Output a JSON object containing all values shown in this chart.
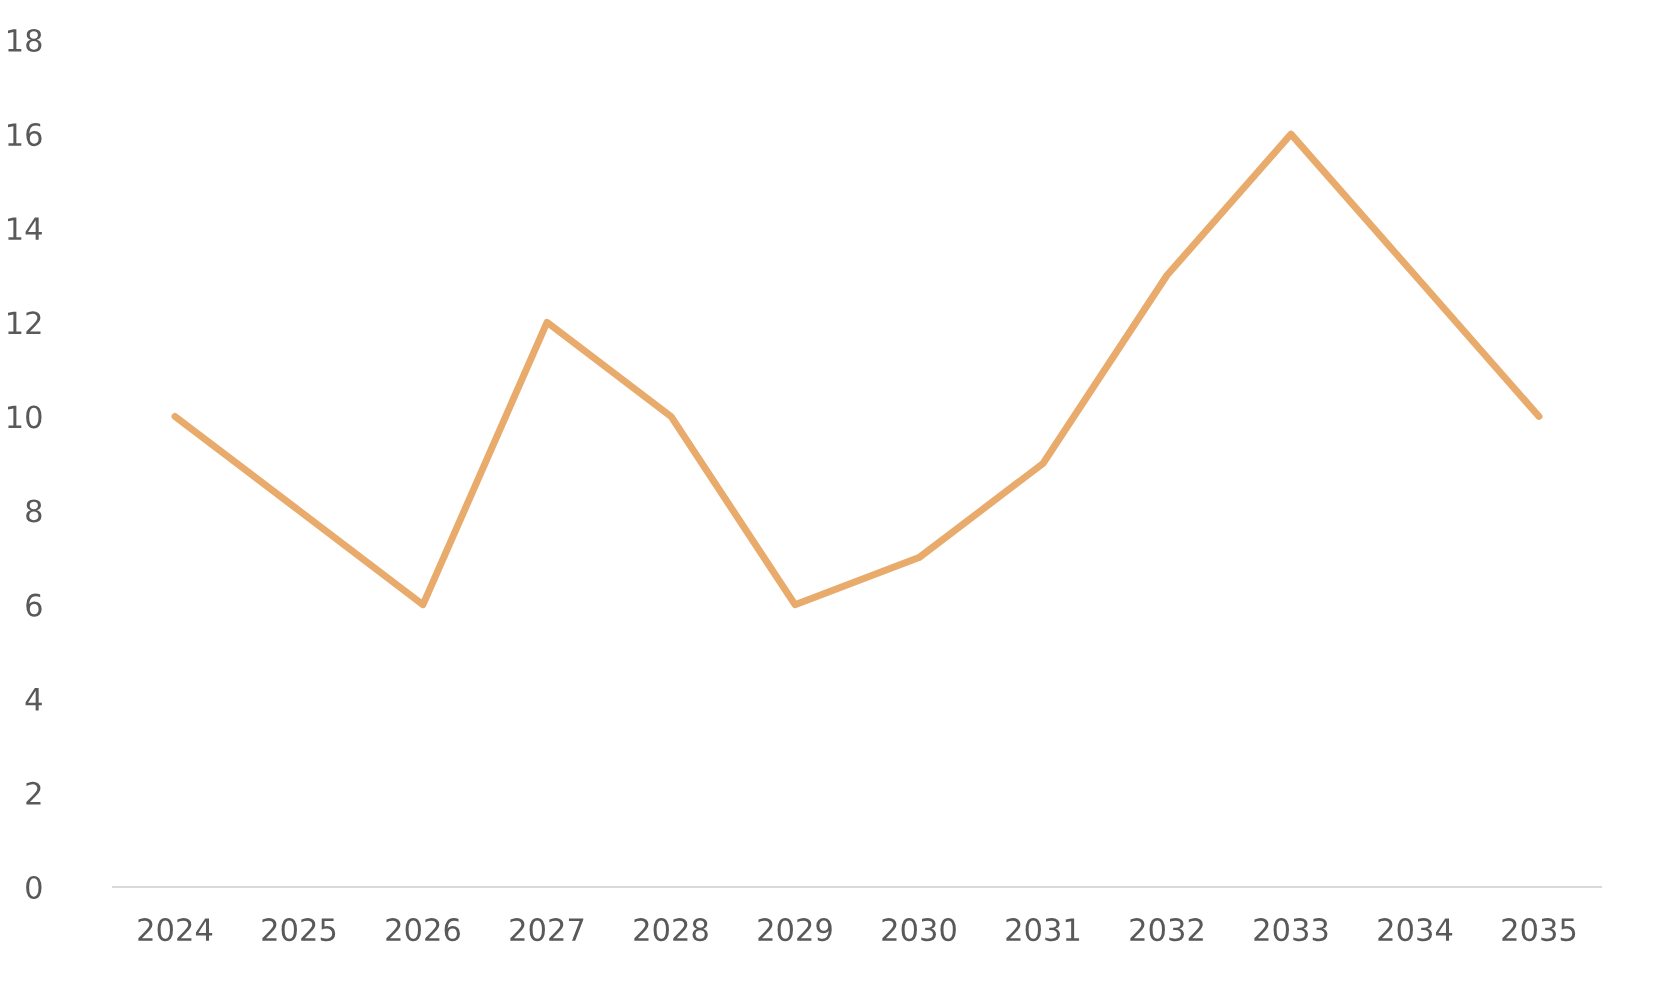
{
  "chart_data": {
    "type": "line",
    "categories": [
      "2024",
      "2025",
      "2026",
      "2027",
      "2028",
      "2029",
      "2030",
      "2031",
      "2032",
      "2033",
      "2034",
      "2035"
    ],
    "series": [
      {
        "color": "#e9ab6c",
        "values": [
          10,
          8,
          6,
          12,
          10,
          6,
          7,
          9,
          13,
          16,
          13,
          10
        ]
      }
    ],
    "ylim": [
      0,
      18
    ],
    "yticks": [
      0,
      2,
      4,
      6,
      8,
      10,
      12,
      14,
      16,
      18
    ],
    "grid": false,
    "marker": "none",
    "line_style": "solid"
  }
}
